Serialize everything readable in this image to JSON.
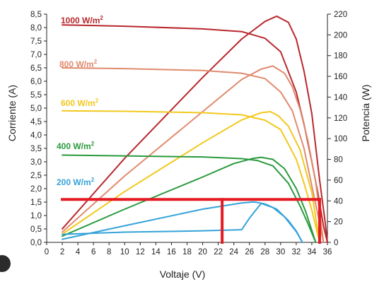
{
  "chart_data": {
    "type": "line",
    "title": "",
    "xlabel": "Voltaje (V)",
    "ylabel": "Corriente  (A)",
    "y2label": "Potencia (W)",
    "xlim": [
      0,
      36
    ],
    "ylim": [
      0,
      8.5
    ],
    "y2lim": [
      0,
      220
    ],
    "x_ticks": [
      "0",
      "2",
      "4",
      "6",
      "8",
      "10",
      "12",
      "14",
      "16",
      "18",
      "20",
      "22",
      "24",
      "26",
      "28",
      "30",
      "32",
      "34",
      "36"
    ],
    "y_ticks": [
      "0,0",
      "0,5",
      "1,0",
      "1,5",
      "2,0",
      "2,5",
      "3,0",
      "3,5",
      "4,0",
      "4,5",
      "5,0",
      "5,5",
      "6,0",
      "6,5",
      "7,0",
      "7,5",
      "8,0",
      "8,5"
    ],
    "y2_ticks": [
      "0",
      "20",
      "40",
      "60",
      "80",
      "100",
      "120",
      "140",
      "160",
      "180",
      "200",
      "220"
    ],
    "grid": false,
    "series": [
      {
        "name": "1000 W/m2",
        "color": "#b8282d",
        "current": {
          "x": [
            2,
            10,
            20,
            25,
            28,
            30,
            32,
            33,
            34,
            34.8,
            35.5,
            36
          ],
          "y": [
            8.1,
            8.05,
            7.95,
            7.85,
            7.6,
            7.1,
            5.6,
            4.4,
            3.0,
            1.8,
            0.6,
            0
          ]
        },
        "power": {
          "x": [
            2,
            10,
            20,
            25,
            28,
            29.5,
            31,
            32,
            33,
            34,
            35,
            35.7,
            36
          ],
          "y": [
            13,
            81,
            159,
            196,
            213,
            218,
            212,
            196,
            165,
            124,
            60,
            20,
            0
          ]
        }
      },
      {
        "name": "800 W/m2",
        "color": "#e08a6e",
        "current": {
          "x": [
            2,
            10,
            20,
            25,
            28,
            30,
            31.5,
            33,
            34,
            34.8,
            35.5
          ],
          "y": [
            6.5,
            6.47,
            6.4,
            6.3,
            6.1,
            5.6,
            4.9,
            3.5,
            2.1,
            1.0,
            0
          ]
        },
        "power": {
          "x": [
            2,
            10,
            20,
            25,
            27.5,
            29,
            30.5,
            31.5,
            32.5,
            33.5,
            34.5,
            35.5
          ],
          "y": [
            10,
            64,
            126,
            157,
            167,
            170,
            163,
            150,
            128,
            98,
            58,
            0
          ]
        }
      },
      {
        "name": "600 W/m2",
        "color": "#f2c81e",
        "current": {
          "x": [
            2,
            10,
            20,
            25,
            28,
            30,
            32,
            33,
            34,
            35
          ],
          "y": [
            4.9,
            4.88,
            4.83,
            4.75,
            4.55,
            4.2,
            3.1,
            2.2,
            1.2,
            0
          ]
        },
        "power": {
          "x": [
            2,
            10,
            20,
            25,
            27.5,
            28.7,
            29.7,
            31,
            32.5,
            34,
            35
          ],
          "y": [
            8,
            49,
            96,
            118,
            125,
            126,
            122,
            112,
            89,
            48,
            0
          ]
        }
      },
      {
        "name": "400 W/m2",
        "color": "#2a9a3e",
        "current": {
          "x": [
            2,
            10,
            20,
            25,
            27,
            29,
            31,
            32.5,
            33.5,
            34.5
          ],
          "y": [
            3.25,
            3.22,
            3.18,
            3.12,
            3.05,
            2.85,
            2.2,
            1.35,
            0.7,
            0
          ]
        },
        "power": {
          "x": [
            2,
            10,
            20,
            24,
            26.5,
            27.5,
            29,
            30.5,
            32,
            33.2,
            34.5
          ],
          "y": [
            6,
            32,
            63,
            76,
            81,
            82,
            80,
            71,
            52,
            30,
            0
          ]
        }
      },
      {
        "name": "200 W/m2",
        "color": "#35a3d8",
        "current": {
          "x": [
            2,
            10,
            20,
            25,
            26,
            27.5,
            29,
            30.5,
            32,
            32.8
          ],
          "y": [
            0.3,
            0.38,
            0.43,
            0.47,
            0.9,
            1.45,
            1.3,
            0.95,
            0.4,
            0
          ]
        },
        "power": {
          "x": [
            2,
            10,
            20,
            25,
            26.5,
            27,
            28,
            29.5,
            31,
            32,
            32.8
          ],
          "y": [
            3,
            16,
            32,
            38,
            39,
            38.5,
            37,
            32,
            21,
            11,
            0
          ]
        }
      }
    ],
    "annotations": [
      {
        "type": "hline",
        "y": 1.6,
        "x_range": [
          2,
          35
        ],
        "color": "#e51b24"
      },
      {
        "type": "vline",
        "x": 22.5,
        "y_range": [
          0,
          1.6
        ],
        "color": "#e51b24"
      },
      {
        "type": "vline",
        "x": 35,
        "y_range": [
          0,
          1.6
        ],
        "color": "#e51b24"
      }
    ]
  },
  "labels": {
    "s1000": "1000 W/m",
    "s800": "800 W/m",
    "s600": "600 W/m",
    "s400": "400 W/m",
    "s200": "200 W/m",
    "sup": "2"
  }
}
